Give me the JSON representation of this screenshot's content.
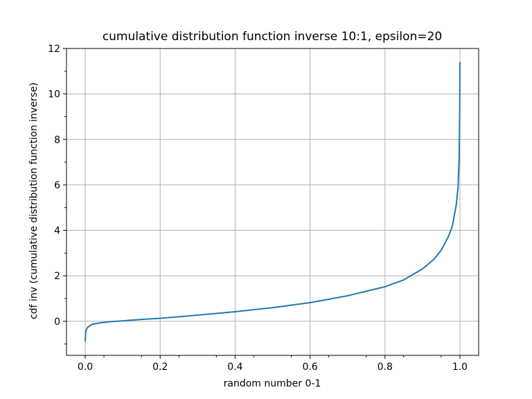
{
  "chart_data": {
    "type": "line",
    "title": "cumulative distribution function inverse 10:1, epsilon=20",
    "xlabel": "random number 0-1",
    "ylabel": "cdf inv (cumulative distribution function inverse)",
    "xlim": [
      -0.05,
      1.05
    ],
    "ylim": [
      -1.5,
      12
    ],
    "xticks": [
      0.0,
      0.2,
      0.4,
      0.6,
      0.8,
      1.0
    ],
    "xtick_labels": [
      "0.0",
      "0.2",
      "0.4",
      "0.6",
      "0.8",
      "1.0"
    ],
    "yticks": [
      0,
      2,
      4,
      6,
      8,
      10,
      12
    ],
    "ytick_labels": [
      "0",
      "2",
      "4",
      "6",
      "8",
      "10",
      "12"
    ],
    "grid": true,
    "series": [
      {
        "color": "#1f77b4",
        "x": [
          0.0,
          0.001,
          0.002,
          0.005,
          0.01,
          0.02,
          0.04,
          0.06,
          0.1,
          0.15,
          0.2,
          0.3,
          0.4,
          0.5,
          0.6,
          0.7,
          0.8,
          0.85,
          0.9,
          0.93,
          0.95,
          0.97,
          0.98,
          0.99,
          0.995,
          0.998,
          0.9995,
          0.9999
        ],
        "y": [
          -0.9,
          -0.55,
          -0.42,
          -0.3,
          -0.22,
          -0.13,
          -0.07,
          -0.03,
          0.02,
          0.08,
          0.13,
          0.27,
          0.42,
          0.6,
          0.82,
          1.12,
          1.52,
          1.82,
          2.3,
          2.72,
          3.12,
          3.75,
          4.2,
          5.1,
          5.9,
          7.3,
          9.3,
          11.4
        ]
      }
    ]
  }
}
